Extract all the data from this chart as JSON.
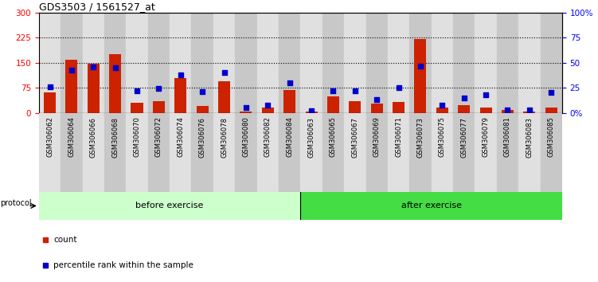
{
  "title": "GDS3503 / 1561527_at",
  "samples": [
    "GSM306062",
    "GSM306064",
    "GSM306066",
    "GSM306068",
    "GSM306070",
    "GSM306072",
    "GSM306074",
    "GSM306076",
    "GSM306078",
    "GSM306080",
    "GSM306082",
    "GSM306084",
    "GSM306063",
    "GSM306065",
    "GSM306067",
    "GSM306069",
    "GSM306071",
    "GSM306073",
    "GSM306075",
    "GSM306077",
    "GSM306079",
    "GSM306081",
    "GSM306083",
    "GSM306085"
  ],
  "counts": [
    62,
    158,
    148,
    175,
    30,
    35,
    105,
    20,
    95,
    5,
    15,
    68,
    3,
    50,
    35,
    28,
    32,
    222,
    15,
    22,
    15,
    8,
    5,
    15
  ],
  "percentiles": [
    26,
    43,
    46,
    45,
    22,
    24,
    38,
    21,
    40,
    5,
    8,
    30,
    2,
    22,
    22,
    13,
    25,
    47,
    8,
    15,
    18,
    3,
    3,
    20
  ],
  "before_count": 12,
  "after_count": 12,
  "bar_color": "#cc2200",
  "dot_color": "#0000cc",
  "before_color": "#ccffcc",
  "after_color": "#44dd44",
  "protocol_label": "protocol",
  "before_label": "before exercise",
  "after_label": "after exercise",
  "legend_count": "count",
  "legend_percentile": "percentile rank within the sample",
  "ylim_left": [
    0,
    300
  ],
  "yticks_left": [
    0,
    75,
    150,
    225,
    300
  ],
  "yticks_right": [
    0,
    25,
    50,
    75,
    100
  ],
  "ytick_right_labels": [
    "0%",
    "25",
    "50",
    "75",
    "100%"
  ],
  "hlines": [
    75,
    150,
    225
  ],
  "bg_color": "#ffffff"
}
